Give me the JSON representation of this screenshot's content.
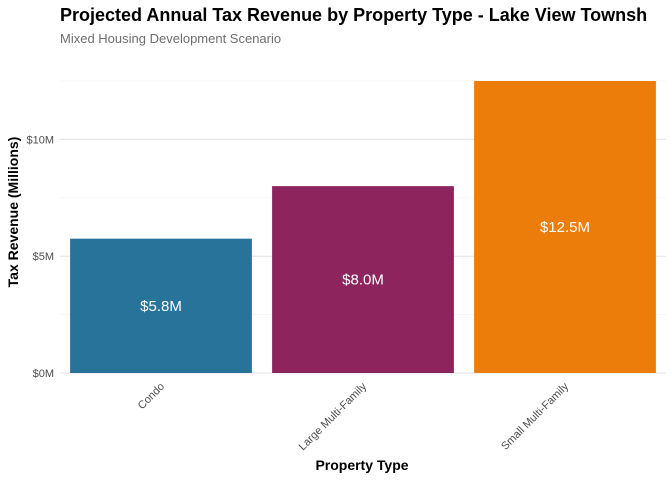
{
  "chart_data": {
    "type": "bar",
    "title": "Projected Annual Tax Revenue by Property Type - Lake View Townsh",
    "subtitle": "Mixed Housing Development Scenario",
    "xlabel": "Property Type",
    "ylabel": "Tax Revenue (Millions)",
    "categories": [
      "Condo",
      "Large Multi-Family",
      "Small Multi-Family"
    ],
    "values": [
      5.75,
      8.0,
      12.5
    ],
    "data_labels": [
      "$5.8M",
      "$8.0M",
      "$12.5M"
    ],
    "colors": [
      "#277399",
      "#8e245e",
      "#ec7d0a"
    ],
    "ylim": [
      0,
      12.5
    ],
    "yticks": [
      0,
      5,
      10
    ],
    "ytick_labels": [
      "$0M",
      "$5M",
      "$10M"
    ],
    "grid": true,
    "legend": "none"
  }
}
